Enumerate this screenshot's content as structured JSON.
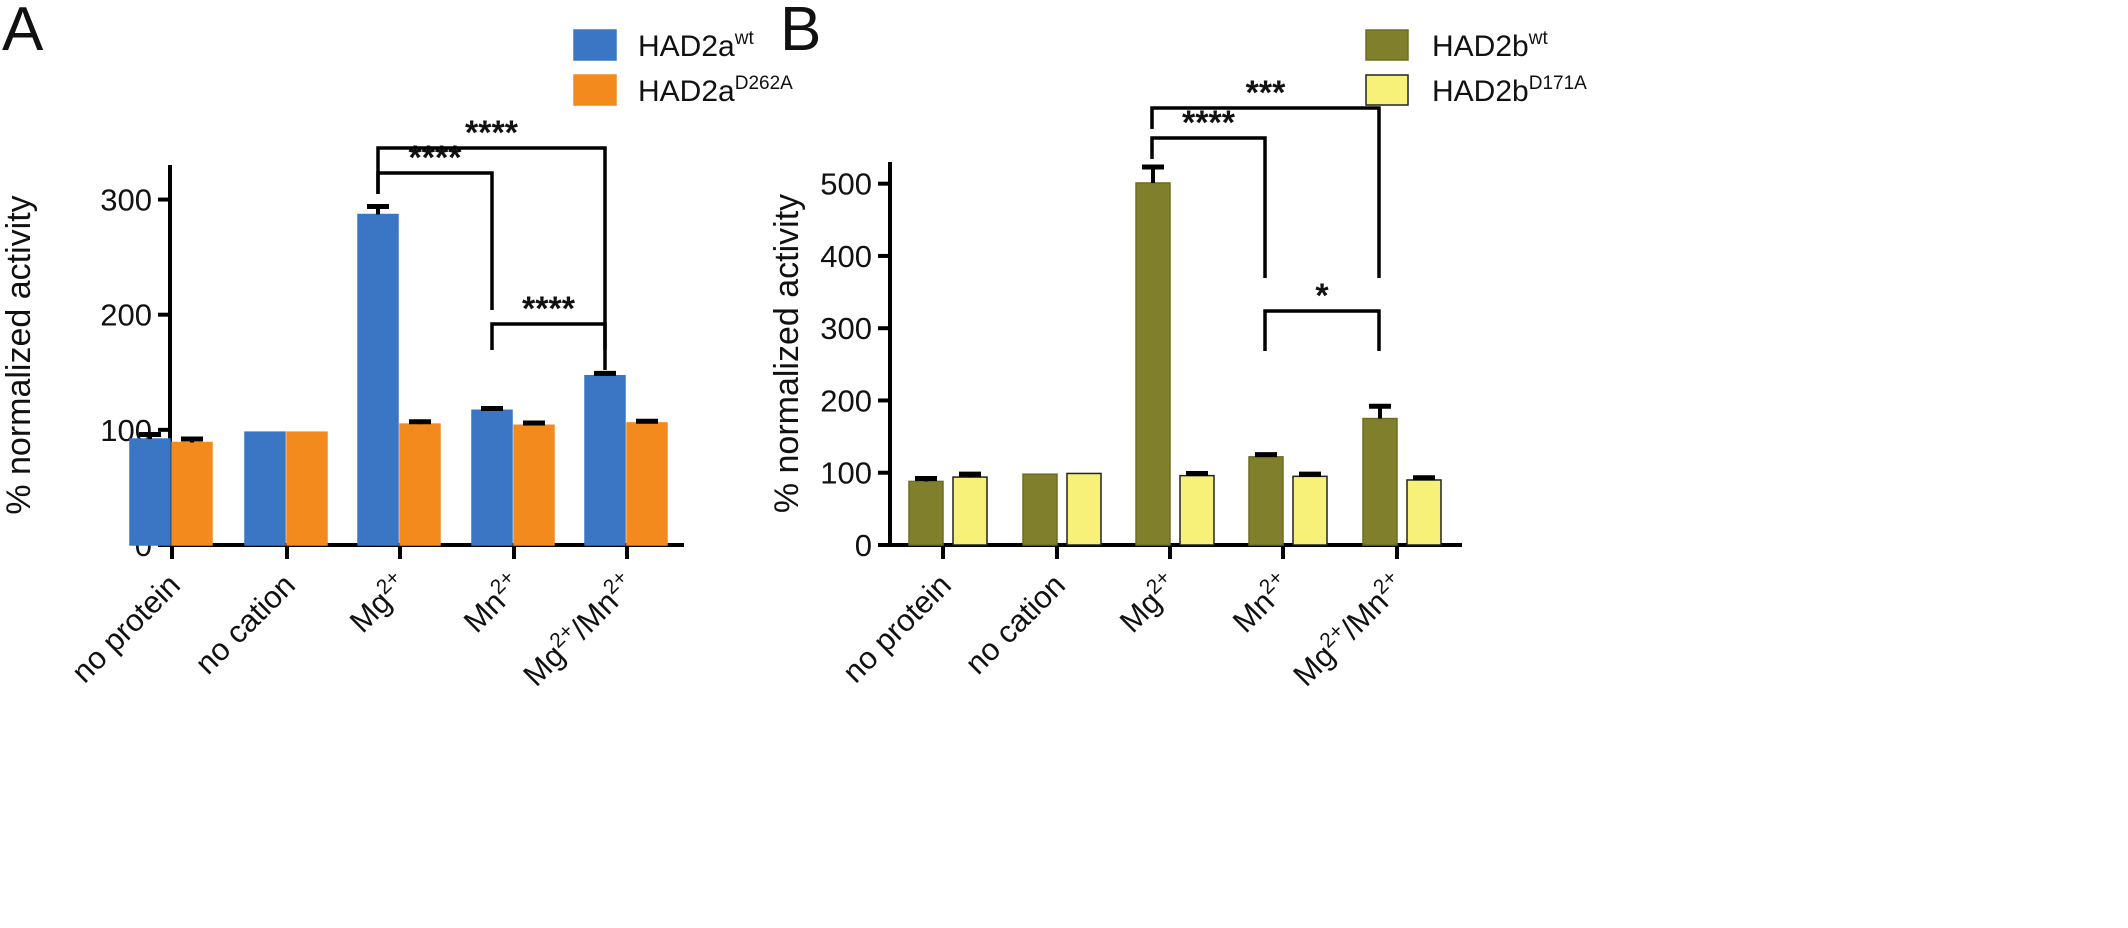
{
  "chart_data": [
    {
      "panel_label": "A",
      "type": "bar",
      "ylabel": "% normalized activity",
      "xlabel": "",
      "ylim": [
        0,
        330
      ],
      "yticks": [
        0,
        100,
        200,
        300
      ],
      "categories": [
        {
          "main": "no protein"
        },
        {
          "main": "no cation"
        },
        {
          "main": "Mg",
          "sup": "2+"
        },
        {
          "main": "Mn",
          "sup": "2+"
        },
        {
          "main": "Mg",
          "sup": "2+",
          "main2": "/Mn",
          "sup2": "2+"
        }
      ],
      "series": [
        {
          "name": "HAD2a",
          "name_sup": "wt",
          "color": "#3a76c4",
          "stroke": "#3a76c4",
          "values": [
            92,
            98,
            287,
            117,
            147
          ],
          "errors": [
            4,
            0,
            7,
            1.5,
            2
          ]
        },
        {
          "name": "HAD2a",
          "name_sup": "D262A",
          "color": "#f28a1e",
          "stroke": "#f28a1e",
          "values": [
            89,
            98,
            105,
            104,
            106
          ],
          "errors": [
            3,
            0,
            2,
            2,
            1.5
          ]
        }
      ],
      "significance": [
        {
          "from": 2,
          "to": 3,
          "label": "****"
        },
        {
          "from": 2,
          "to": 4,
          "label": "****"
        },
        {
          "from": 3,
          "to": 4,
          "label": "****"
        }
      ]
    },
    {
      "panel_label": "B",
      "type": "bar",
      "ylabel": "% normalized activity",
      "xlabel": "",
      "ylim": [
        0,
        530
      ],
      "yticks": [
        0,
        100,
        200,
        300,
        400,
        500
      ],
      "categories": [
        {
          "main": "no protein"
        },
        {
          "main": "no cation"
        },
        {
          "main": "Mg",
          "sup": "2+"
        },
        {
          "main": "Mn",
          "sup": "2+"
        },
        {
          "main": "Mg",
          "sup": "2+",
          "main2": "/Mn",
          "sup2": "2+"
        }
      ],
      "series": [
        {
          "name": "HAD2b",
          "name_sup": "wt",
          "color": "#7f7f2c",
          "stroke": "#6e6e22",
          "values": [
            88,
            98,
            501,
            122,
            175
          ],
          "errors": [
            4,
            0,
            22,
            3,
            17
          ]
        },
        {
          "name": "HAD2b",
          "name_sup": "D171A",
          "color": "#f7f17a",
          "stroke": "#222222",
          "values": [
            94,
            99,
            96,
            95,
            90
          ],
          "errors": [
            4,
            0,
            3,
            3,
            3
          ]
        }
      ],
      "significance": [
        {
          "from": 2,
          "to": 3,
          "label": "****"
        },
        {
          "from": 2,
          "to": 4,
          "label": "***"
        },
        {
          "from": 3,
          "to": 4,
          "label": "*"
        }
      ]
    }
  ]
}
